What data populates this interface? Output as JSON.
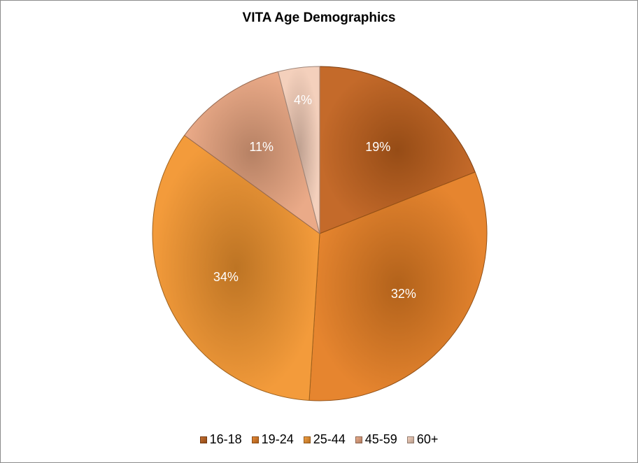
{
  "chart_data": {
    "type": "pie",
    "title": "VITA Age Demographics",
    "categories": [
      "16-18",
      "19-24",
      "25-44",
      "45-59",
      "60+"
    ],
    "values": [
      19,
      32,
      34,
      11,
      4
    ],
    "labels": [
      "19%",
      "32%",
      "34%",
      "11%",
      "4%"
    ],
    "colors": [
      "#c0611c",
      "#e47d22",
      "#f2952e",
      "#e9a580",
      "#f3cdb8"
    ],
    "legend_position": "bottom"
  }
}
